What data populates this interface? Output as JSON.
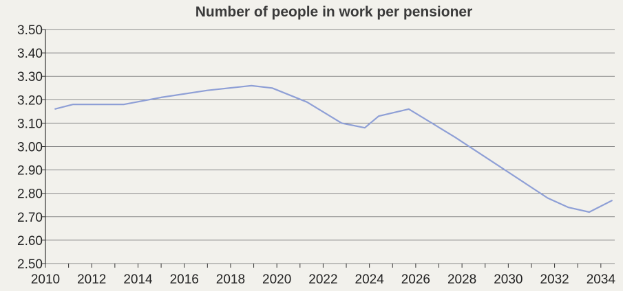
{
  "chart_data": {
    "type": "line",
    "title": "Number of people in work per pensioner",
    "xlabel": "",
    "ylabel": "",
    "xlim": [
      2010,
      2034.6
    ],
    "ylim": [
      2.5,
      3.5
    ],
    "grid": true,
    "x_ticks": [
      "2010",
      "2012",
      "2014",
      "2016",
      "2018",
      "2020",
      "2022",
      "2024",
      "2026",
      "2028",
      "2030",
      "2032",
      "2034"
    ],
    "y_ticks": [
      "3.50",
      "3.40",
      "3.30",
      "3.20",
      "3.10",
      "3.00",
      "2.90",
      "2.80",
      "2.70",
      "2.60",
      "2.50"
    ],
    "series": [
      {
        "x": [
          2010.4,
          2011.2,
          2012.2,
          2013.4,
          2015.0,
          2017.0,
          2018.9,
          2019.8,
          2021.3,
          2022.8,
          2023.8,
          2024.4,
          2025.7,
          2027.7,
          2029.7,
          2031.7,
          2032.6,
          2033.5,
          2034.5
        ],
        "values": [
          3.16,
          3.18,
          3.18,
          3.18,
          3.21,
          3.24,
          3.26,
          3.25,
          3.19,
          3.1,
          3.08,
          3.13,
          3.16,
          3.04,
          2.91,
          2.78,
          2.74,
          2.72,
          2.77
        ]
      }
    ],
    "colors": {
      "line": "#8e9fd6",
      "grid": "#8a8a8a",
      "axis": "#333333"
    }
  }
}
